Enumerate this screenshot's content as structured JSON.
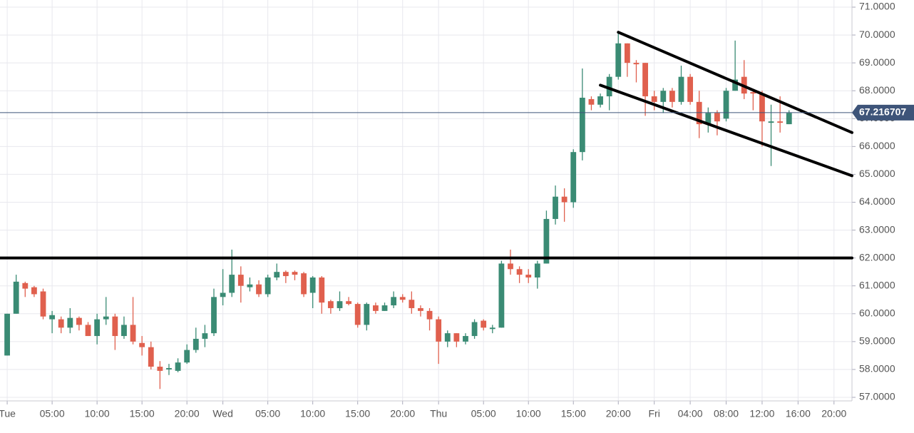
{
  "chart_data": {
    "type": "candlestick",
    "x": [
      0,
      1,
      2,
      3,
      4,
      5,
      6,
      7,
      8,
      9,
      10,
      11,
      12,
      13,
      14,
      15,
      16,
      17,
      18,
      19,
      20,
      21,
      22,
      23,
      24,
      25,
      26,
      27,
      28,
      29,
      30,
      31,
      32,
      33,
      34,
      35,
      36,
      37,
      38,
      39,
      40,
      41,
      42,
      43,
      44,
      45,
      46,
      47,
      48,
      49,
      50,
      51,
      52,
      53,
      54,
      55,
      56,
      57,
      58,
      59,
      60,
      61,
      62,
      63,
      64,
      65,
      66,
      67,
      68,
      69,
      70,
      71,
      72,
      73,
      74,
      75,
      76,
      77,
      78,
      79,
      80,
      81,
      82,
      83,
      84,
      85,
      86,
      87
    ],
    "open": [
      58.5,
      60.0,
      61.1,
      60.95,
      60.8,
      59.8,
      59.8,
      59.5,
      59.85,
      59.6,
      59.2,
      59.8,
      59.9,
      59.2,
      59.6,
      58.95,
      58.8,
      58.1,
      58.0,
      57.95,
      58.25,
      58.7,
      59.1,
      59.3,
      60.6,
      60.75,
      61.4,
      60.95,
      61.05,
      60.7,
      61.3,
      61.5,
      61.5,
      61.45,
      60.75,
      61.3,
      60.45,
      60.2,
      60.45,
      60.35,
      59.6,
      60.3,
      60.1,
      60.3,
      60.6,
      60.5,
      60.2,
      60.1,
      59.8,
      59.0,
      59.3,
      59.0,
      59.2,
      59.75,
      59.45,
      59.5,
      61.8,
      61.6,
      61.4,
      61.3,
      61.8,
      63.4,
      64.2,
      64.0,
      65.8,
      67.7,
      67.5,
      67.8,
      68.5,
      69.7,
      69.0,
      69.0,
      67.8,
      67.6,
      68.0,
      67.6,
      68.5,
      67.6,
      66.8,
      67.2,
      67.0,
      68.0,
      68.5,
      67.95,
      67.9,
      66.85,
      66.9,
      66.8
    ],
    "high": [
      60.0,
      61.4,
      61.15,
      61.0,
      60.9,
      60.1,
      59.9,
      60.2,
      59.9,
      59.7,
      60.0,
      60.6,
      60.0,
      59.9,
      60.6,
      59.2,
      59.0,
      58.3,
      58.2,
      58.4,
      58.9,
      59.5,
      59.6,
      60.9,
      61.6,
      62.3,
      61.7,
      61.3,
      61.2,
      61.4,
      61.8,
      61.55,
      61.55,
      61.5,
      61.35,
      61.35,
      60.5,
      60.8,
      60.6,
      60.4,
      60.4,
      60.4,
      60.4,
      60.8,
      60.7,
      60.8,
      60.3,
      60.2,
      59.9,
      59.4,
      59.3,
      59.3,
      59.8,
      59.8,
      59.6,
      61.9,
      62.3,
      61.7,
      61.6,
      61.9,
      63.7,
      64.6,
      64.5,
      65.9,
      68.8,
      67.8,
      67.9,
      68.6,
      70.1,
      69.7,
      69.1,
      69.0,
      68.0,
      68.1,
      68.1,
      68.9,
      68.6,
      68.0,
      67.4,
      67.3,
      68.1,
      69.8,
      69.1,
      68.0,
      68.0,
      67.5,
      67.8,
      67.3
    ],
    "low": [
      58.5,
      60.0,
      60.6,
      60.6,
      59.8,
      59.3,
      59.3,
      59.3,
      59.4,
      59.2,
      58.9,
      59.6,
      58.7,
      59.1,
      58.9,
      58.5,
      58.0,
      57.3,
      57.8,
      57.9,
      58.2,
      58.6,
      58.8,
      59.2,
      60.3,
      60.6,
      60.4,
      60.8,
      60.6,
      60.6,
      61.2,
      61.1,
      61.2,
      60.6,
      60.2,
      60.0,
      60.0,
      60.1,
      60.3,
      59.5,
      59.4,
      60.0,
      60.1,
      60.2,
      60.4,
      60.0,
      59.9,
      59.4,
      58.2,
      58.8,
      58.8,
      58.9,
      59.1,
      59.4,
      59.3,
      59.5,
      61.4,
      61.1,
      61.1,
      60.9,
      61.8,
      63.2,
      63.3,
      63.8,
      65.5,
      67.3,
      67.4,
      67.3,
      68.4,
      68.5,
      68.3,
      67.1,
      67.3,
      67.2,
      67.4,
      67.5,
      67.5,
      66.3,
      66.5,
      66.4,
      66.9,
      68.0,
      67.7,
      67.3,
      66.0,
      65.3,
      66.5,
      66.8
    ],
    "close": [
      60.0,
      61.15,
      60.9,
      60.7,
      59.9,
      59.95,
      59.5,
      59.85,
      59.6,
      59.2,
      59.8,
      59.9,
      59.2,
      59.6,
      59.0,
      58.8,
      58.1,
      57.95,
      58.05,
      58.25,
      58.7,
      59.1,
      59.3,
      60.6,
      60.75,
      61.4,
      61.0,
      61.05,
      60.7,
      61.3,
      61.5,
      61.35,
      61.4,
      60.7,
      61.3,
      60.4,
      60.2,
      60.45,
      60.35,
      59.6,
      60.35,
      60.1,
      60.3,
      60.6,
      60.5,
      60.2,
      60.1,
      59.8,
      59.0,
      59.3,
      59.0,
      59.2,
      59.7,
      59.5,
      59.5,
      61.8,
      61.6,
      61.4,
      61.3,
      61.8,
      63.4,
      64.2,
      64.0,
      65.8,
      67.75,
      67.5,
      67.8,
      68.5,
      69.7,
      69.0,
      68.95,
      67.8,
      67.6,
      68.0,
      67.6,
      68.5,
      67.6,
      66.8,
      67.2,
      66.9,
      68.0,
      68.4,
      67.9,
      67.9,
      66.9,
      66.9,
      66.85,
      67.2
    ],
    "up_color": "#3a8b74",
    "down_color": "#e0604e",
    "xlim": [
      -0.8,
      94
    ],
    "ylim": [
      57,
      71
    ],
    "xticks": [
      {
        "value": 0,
        "label": "Tue"
      },
      {
        "value": 5,
        "label": "05:00"
      },
      {
        "value": 10,
        "label": "10:00"
      },
      {
        "value": 15,
        "label": "15:00"
      },
      {
        "value": 20,
        "label": "20:00"
      },
      {
        "value": 24,
        "label": "Wed"
      },
      {
        "value": 29,
        "label": "05:00"
      },
      {
        "value": 34,
        "label": "10:00"
      },
      {
        "value": 39,
        "label": "15:00"
      },
      {
        "value": 44,
        "label": "20:00"
      },
      {
        "value": 48,
        "label": "Thu"
      },
      {
        "value": 53,
        "label": "05:00"
      },
      {
        "value": 58,
        "label": "10:00"
      },
      {
        "value": 63,
        "label": "15:00"
      },
      {
        "value": 68,
        "label": "20:00"
      },
      {
        "value": 72,
        "label": "Fri"
      },
      {
        "value": 76,
        "label": "04:00"
      },
      {
        "value": 80,
        "label": "08:00"
      },
      {
        "value": 84,
        "label": "12:00"
      },
      {
        "value": 88,
        "label": "16:00"
      },
      {
        "value": 92,
        "label": "20:00"
      }
    ],
    "yticks": [
      {
        "value": 57,
        "label": "57.0000"
      },
      {
        "value": 58,
        "label": "58.0000"
      },
      {
        "value": 59,
        "label": "59.0000"
      },
      {
        "value": 60,
        "label": "60.0000"
      },
      {
        "value": 61,
        "label": "61.0000"
      },
      {
        "value": 62,
        "label": "62.0000"
      },
      {
        "value": 63,
        "label": "63.0000"
      },
      {
        "value": 64,
        "label": "64.0000"
      },
      {
        "value": 65,
        "label": "65.0000"
      },
      {
        "value": 66,
        "label": "66.0000"
      },
      {
        "value": 67,
        "label": "67.0000"
      },
      {
        "value": 68,
        "label": "68.0000"
      },
      {
        "value": 69,
        "label": "69.0000"
      },
      {
        "value": 70,
        "label": "70.0000"
      },
      {
        "value": 71,
        "label": "71.0000"
      }
    ],
    "grid": true,
    "last_price": 67.216707,
    "last_price_color": "#3e5479",
    "trend_lines": [
      {
        "points": [
          [
            -0.8,
            62.0
          ],
          [
            94,
            62.0
          ]
        ]
      },
      {
        "points": [
          [
            68,
            70.1
          ],
          [
            94,
            66.5
          ]
        ]
      },
      {
        "points": [
          [
            66,
            68.2
          ],
          [
            94,
            64.95
          ]
        ]
      }
    ]
  }
}
